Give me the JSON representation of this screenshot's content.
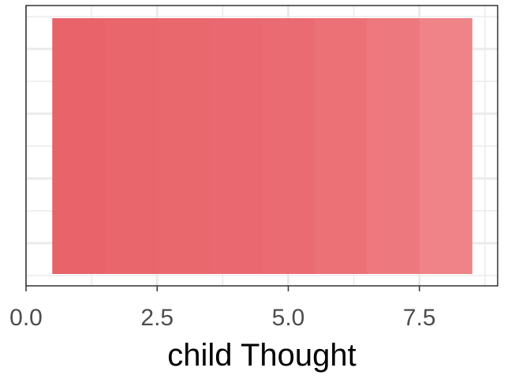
{
  "chart_data": {
    "type": "bar",
    "orientation": "horizontal",
    "title": "",
    "xlabel": "child Thought",
    "ylabel": "",
    "xlim": [
      0,
      9
    ],
    "x_ticks": [
      0.0,
      2.5,
      5.0,
      7.5
    ],
    "x_tick_labels": [
      "0.0",
      "2.5",
      "5.0",
      "7.5"
    ],
    "grid": true,
    "legend": "none",
    "segments": [
      {
        "start": 0.5,
        "end": 1.5,
        "color": "#e8636a"
      },
      {
        "start": 1.5,
        "end": 2.5,
        "color": "#e8666c"
      },
      {
        "start": 2.5,
        "end": 3.5,
        "color": "#e9686e"
      },
      {
        "start": 3.5,
        "end": 4.5,
        "color": "#ea6970"
      },
      {
        "start": 4.5,
        "end": 5.5,
        "color": "#eb6b72"
      },
      {
        "start": 5.5,
        "end": 6.5,
        "color": "#ec7177"
      },
      {
        "start": 6.5,
        "end": 7.5,
        "color": "#ed797e"
      },
      {
        "start": 7.5,
        "end": 8.5,
        "color": "#ef8387"
      }
    ]
  }
}
